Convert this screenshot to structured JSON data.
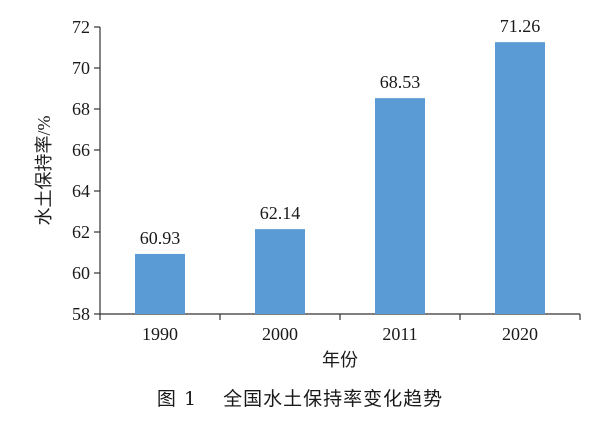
{
  "caption": {
    "figure_number": "图 1",
    "title": "全国水土保持率变化趋势"
  },
  "colors": {
    "bar": "#5B9BD5",
    "axis": "#333333",
    "text": "#1a1a1a"
  },
  "chart_data": {
    "type": "bar",
    "categories": [
      "1990",
      "2000",
      "2011",
      "2020"
    ],
    "values": [
      60.93,
      62.14,
      68.53,
      71.26
    ],
    "data_labels": [
      "60.93",
      "62.14",
      "68.53",
      "71.26"
    ],
    "xlabel": "年份",
    "ylabel": "水土保持率/%",
    "ylim": [
      58,
      72
    ],
    "yticks": [
      58,
      60,
      62,
      64,
      66,
      68,
      70,
      72
    ],
    "grid": false,
    "legend": "none"
  }
}
